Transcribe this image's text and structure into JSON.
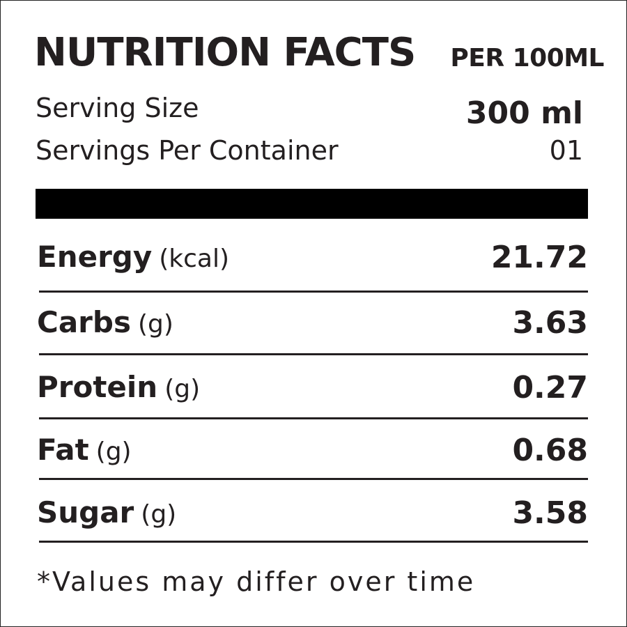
{
  "header": {
    "title": "NUTRITION FACTS",
    "subtitle": "PER 100ML"
  },
  "serving": [
    {
      "label": "Serving Size",
      "value": "300 ml"
    },
    {
      "label": "Servings Per Container",
      "value": "01"
    }
  ],
  "nutrients": [
    {
      "name": "Energy",
      "unit": "(kcal)",
      "value": "21.72"
    },
    {
      "name": "Carbs",
      "unit": "(g)",
      "value": "3.63"
    },
    {
      "name": "Protein",
      "unit": "(g)",
      "value": "0.27"
    },
    {
      "name": "Fat",
      "unit": "(g)",
      "value": "0.68"
    },
    {
      "name": "Sugar",
      "unit": "(g)",
      "value": "3.58"
    }
  ],
  "footnote": "*Values may differ over time"
}
